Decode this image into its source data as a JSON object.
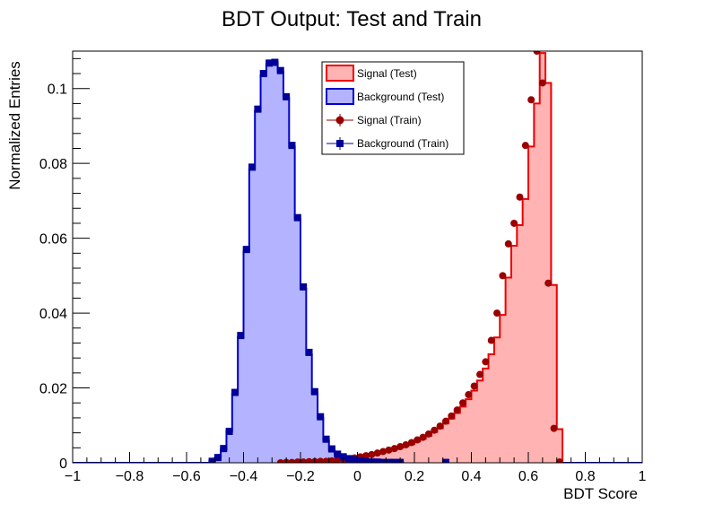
{
  "chart_data": {
    "type": "histogram",
    "title": "BDT Output: Test and Train",
    "xlabel": "BDT Score",
    "ylabel": "Normalized Entries",
    "xlim": [
      -1,
      1
    ],
    "ylim": [
      0,
      0.11
    ],
    "x_ticks": [
      -1,
      -0.8,
      -0.6,
      -0.4,
      -0.2,
      0,
      0.2,
      0.4,
      0.6,
      0.8,
      1
    ],
    "x_tick_labels": [
      "−1",
      "−0.8",
      "−0.6",
      "−0.4",
      "−0.2",
      "0",
      "0.2",
      "0.4",
      "0.6",
      "0.8",
      "1"
    ],
    "y_ticks": [
      0,
      0.02,
      0.04,
      0.06,
      0.08,
      0.1
    ],
    "y_tick_labels": [
      "0",
      "0.02",
      "0.04",
      "0.06",
      "0.08",
      "0.1"
    ],
    "legend_position": "top-center",
    "bin_edges_range": [
      -1,
      1
    ],
    "bin_count": 100,
    "series": [
      {
        "name": "Signal (Test)",
        "kind": "filled-histogram",
        "fill": "#ffb3b3",
        "line": "#ee0000",
        "bins": [
          [
            -0.14,
            0.0001
          ],
          [
            -0.12,
            0.0002
          ],
          [
            -0.1,
            0.0004
          ],
          [
            -0.08,
            0.0006
          ],
          [
            -0.06,
            0.0008
          ],
          [
            -0.04,
            0.001
          ],
          [
            -0.02,
            0.0012
          ],
          [
            0.0,
            0.0015
          ],
          [
            0.02,
            0.0018
          ],
          [
            0.04,
            0.0021
          ],
          [
            0.06,
            0.0024
          ],
          [
            0.08,
            0.0028
          ],
          [
            0.1,
            0.0032
          ],
          [
            0.12,
            0.0036
          ],
          [
            0.14,
            0.004
          ],
          [
            0.16,
            0.0045
          ],
          [
            0.18,
            0.005
          ],
          [
            0.2,
            0.0057
          ],
          [
            0.22,
            0.0064
          ],
          [
            0.24,
            0.0072
          ],
          [
            0.26,
            0.0082
          ],
          [
            0.28,
            0.0092
          ],
          [
            0.3,
            0.0105
          ],
          [
            0.32,
            0.0118
          ],
          [
            0.34,
            0.0133
          ],
          [
            0.36,
            0.015
          ],
          [
            0.38,
            0.017
          ],
          [
            0.4,
            0.0193
          ],
          [
            0.42,
            0.022
          ],
          [
            0.44,
            0.0252
          ],
          [
            0.46,
            0.029
          ],
          [
            0.48,
            0.0335
          ],
          [
            0.5,
            0.0395
          ],
          [
            0.52,
            0.0495
          ],
          [
            0.54,
            0.058
          ],
          [
            0.56,
            0.0635
          ],
          [
            0.58,
            0.0705
          ],
          [
            0.6,
            0.0845
          ],
          [
            0.62,
            0.096
          ],
          [
            0.64,
            0.1095
          ],
          [
            0.66,
            0.1015
          ],
          [
            0.68,
            0.0475
          ],
          [
            0.7,
            0.009
          ]
        ]
      },
      {
        "name": "Background (Test)",
        "kind": "filled-histogram",
        "fill": "#b3b3ff",
        "line": "#0000cc",
        "bins": [
          [
            -0.52,
            0.0005
          ],
          [
            -0.5,
            0.0015
          ],
          [
            -0.48,
            0.0035
          ],
          [
            -0.46,
            0.0085
          ],
          [
            -0.44,
            0.0185
          ],
          [
            -0.42,
            0.0335
          ],
          [
            -0.4,
            0.0565
          ],
          [
            -0.38,
            0.0785
          ],
          [
            -0.36,
            0.094
          ],
          [
            -0.34,
            0.1035
          ],
          [
            -0.32,
            0.1065
          ],
          [
            -0.3,
            0.107
          ],
          [
            -0.28,
            0.1045
          ],
          [
            -0.26,
            0.0975
          ],
          [
            -0.24,
            0.0845
          ],
          [
            -0.22,
            0.065
          ],
          [
            -0.2,
            0.0465
          ],
          [
            -0.18,
            0.029
          ],
          [
            -0.16,
            0.0185
          ],
          [
            -0.14,
            0.012
          ],
          [
            -0.12,
            0.006
          ],
          [
            -0.1,
            0.0035
          ],
          [
            -0.08,
            0.0022
          ],
          [
            -0.06,
            0.0015
          ],
          [
            -0.04,
            0.001
          ],
          [
            -0.02,
            0.0007
          ],
          [
            0.0,
            0.0005
          ],
          [
            0.02,
            0.0003
          ],
          [
            0.04,
            0.0002
          ],
          [
            0.06,
            0.0002
          ],
          [
            0.08,
            0.0001
          ],
          [
            0.1,
            0.0001
          ],
          [
            0.12,
            0.0001
          ],
          [
            0.14,
            0.0001
          ]
        ]
      },
      {
        "name": "Signal (Train)",
        "kind": "markers-circle",
        "color": "#990000",
        "points": [
          [
            -0.27,
            0.0
          ],
          [
            -0.25,
            0.0001
          ],
          [
            -0.23,
            0.0001
          ],
          [
            -0.21,
            0.0002
          ],
          [
            -0.19,
            0.0002
          ],
          [
            -0.17,
            0.0003
          ],
          [
            -0.15,
            0.0003
          ],
          [
            -0.13,
            0.0004
          ],
          [
            -0.11,
            0.0004
          ],
          [
            -0.09,
            0.0005
          ],
          [
            -0.07,
            0.0007
          ],
          [
            -0.05,
            0.0009
          ],
          [
            -0.03,
            0.0011
          ],
          [
            -0.01,
            0.0013
          ],
          [
            0.01,
            0.0016
          ],
          [
            0.03,
            0.0019
          ],
          [
            0.05,
            0.0022
          ],
          [
            0.07,
            0.0026
          ],
          [
            0.09,
            0.003
          ],
          [
            0.11,
            0.0034
          ],
          [
            0.13,
            0.0038
          ],
          [
            0.15,
            0.0043
          ],
          [
            0.17,
            0.0048
          ],
          [
            0.19,
            0.0054
          ],
          [
            0.21,
            0.0061
          ],
          [
            0.23,
            0.0068
          ],
          [
            0.25,
            0.0077
          ],
          [
            0.27,
            0.0087
          ],
          [
            0.29,
            0.0098
          ],
          [
            0.31,
            0.0111
          ],
          [
            0.33,
            0.0125
          ],
          [
            0.35,
            0.0141
          ],
          [
            0.37,
            0.016
          ],
          [
            0.39,
            0.0182
          ],
          [
            0.41,
            0.0205
          ],
          [
            0.43,
            0.0236
          ],
          [
            0.45,
            0.027
          ],
          [
            0.47,
            0.0327
          ],
          [
            0.49,
            0.04
          ],
          [
            0.51,
            0.05
          ],
          [
            0.53,
            0.0585
          ],
          [
            0.55,
            0.064
          ],
          [
            0.57,
            0.071
          ],
          [
            0.59,
            0.0848
          ],
          [
            0.61,
            0.097
          ],
          [
            0.63,
            0.11
          ],
          [
            0.65,
            0.1015
          ],
          [
            0.67,
            0.048
          ],
          [
            0.69,
            0.0092
          ],
          [
            0.71,
            0.0002
          ]
        ]
      },
      {
        "name": "Background (Train)",
        "kind": "markers-square",
        "color": "#000099",
        "points": [
          [
            -0.51,
            0.0004
          ],
          [
            -0.49,
            0.0014
          ],
          [
            -0.47,
            0.0038
          ],
          [
            -0.45,
            0.0084
          ],
          [
            -0.43,
            0.0188
          ],
          [
            -0.41,
            0.034
          ],
          [
            -0.39,
            0.057
          ],
          [
            -0.37,
            0.079
          ],
          [
            -0.35,
            0.0945
          ],
          [
            -0.33,
            0.104
          ],
          [
            -0.31,
            0.1068
          ],
          [
            -0.29,
            0.107
          ],
          [
            -0.27,
            0.1048
          ],
          [
            -0.25,
            0.0978
          ],
          [
            -0.23,
            0.0848
          ],
          [
            -0.21,
            0.0655
          ],
          [
            -0.19,
            0.047
          ],
          [
            -0.17,
            0.0295
          ],
          [
            -0.15,
            0.019
          ],
          [
            -0.13,
            0.0123
          ],
          [
            -0.11,
            0.0063
          ],
          [
            -0.09,
            0.0037
          ],
          [
            -0.07,
            0.0023
          ],
          [
            -0.05,
            0.0016
          ],
          [
            -0.03,
            0.0011
          ],
          [
            -0.01,
            0.0008
          ],
          [
            0.01,
            0.0005
          ],
          [
            0.03,
            0.0003
          ],
          [
            0.05,
            0.0002
          ],
          [
            0.07,
            0.0002
          ],
          [
            0.09,
            0.0001
          ],
          [
            0.11,
            0.0001
          ],
          [
            0.13,
            0.0001
          ],
          [
            0.15,
            0.0001
          ],
          [
            0.31,
            0.0001
          ]
        ]
      }
    ]
  }
}
